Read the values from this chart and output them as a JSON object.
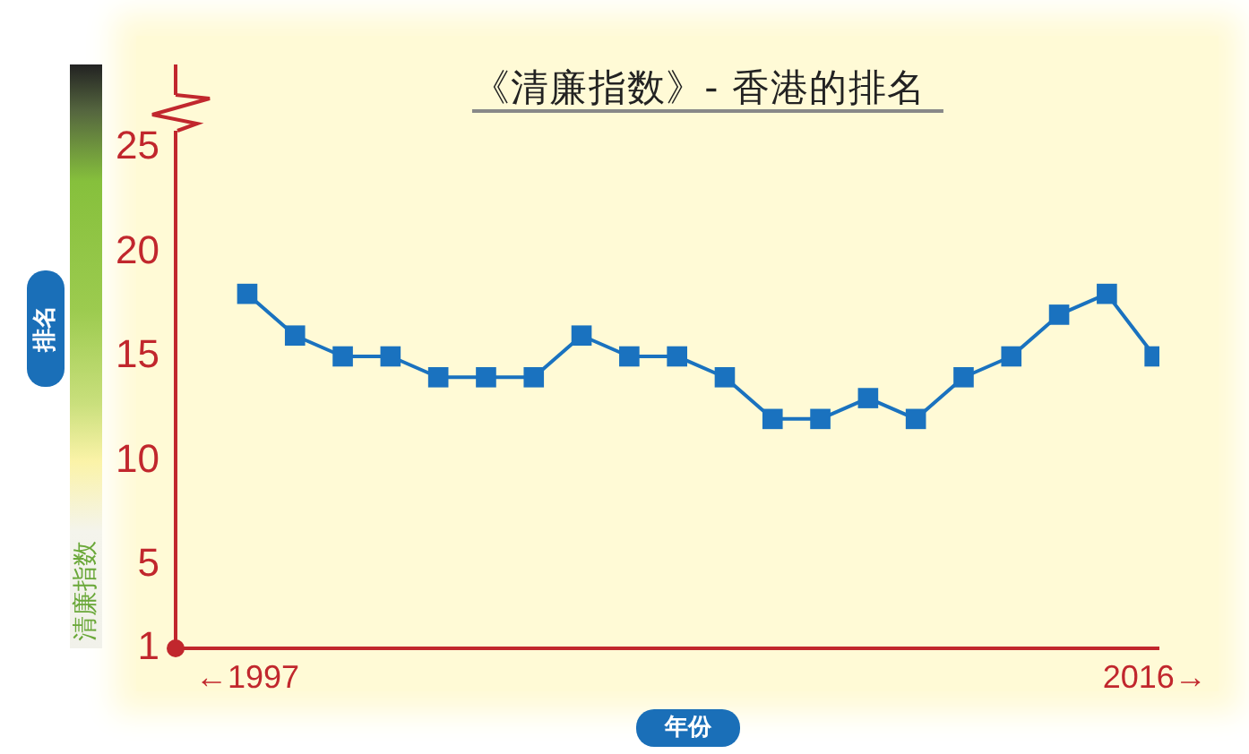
{
  "chart_data": {
    "type": "line",
    "title": "《清廉指数》- 香港的排名",
    "xlabel": "年份",
    "ylabel": "排名",
    "annotations": [
      "清廉指数"
    ],
    "x": [
      1997,
      1998,
      1999,
      2000,
      2001,
      2002,
      2003,
      2004,
      2005,
      2006,
      2007,
      2008,
      2009,
      2010,
      2011,
      2012,
      2013,
      2014,
      2015,
      2016
    ],
    "series": [
      {
        "color": "#1a72bf",
        "values": [
          18,
          16,
          15,
          15,
          14,
          14,
          14,
          16,
          15,
          15,
          14,
          12,
          12,
          13,
          12,
          14,
          15,
          17,
          18,
          15
        ]
      }
    ],
    "xlim": [
      1995.5,
      2016.1
    ],
    "xticks": [
      {
        "value": 1997,
        "label": "←1997"
      },
      {
        "value": 2016,
        "label": "2016→"
      }
    ],
    "ylim": [
      1,
      29
    ],
    "yticks": [
      1,
      5,
      10,
      15,
      20,
      25
    ],
    "grid": false,
    "legend": false,
    "marker": "square"
  }
}
